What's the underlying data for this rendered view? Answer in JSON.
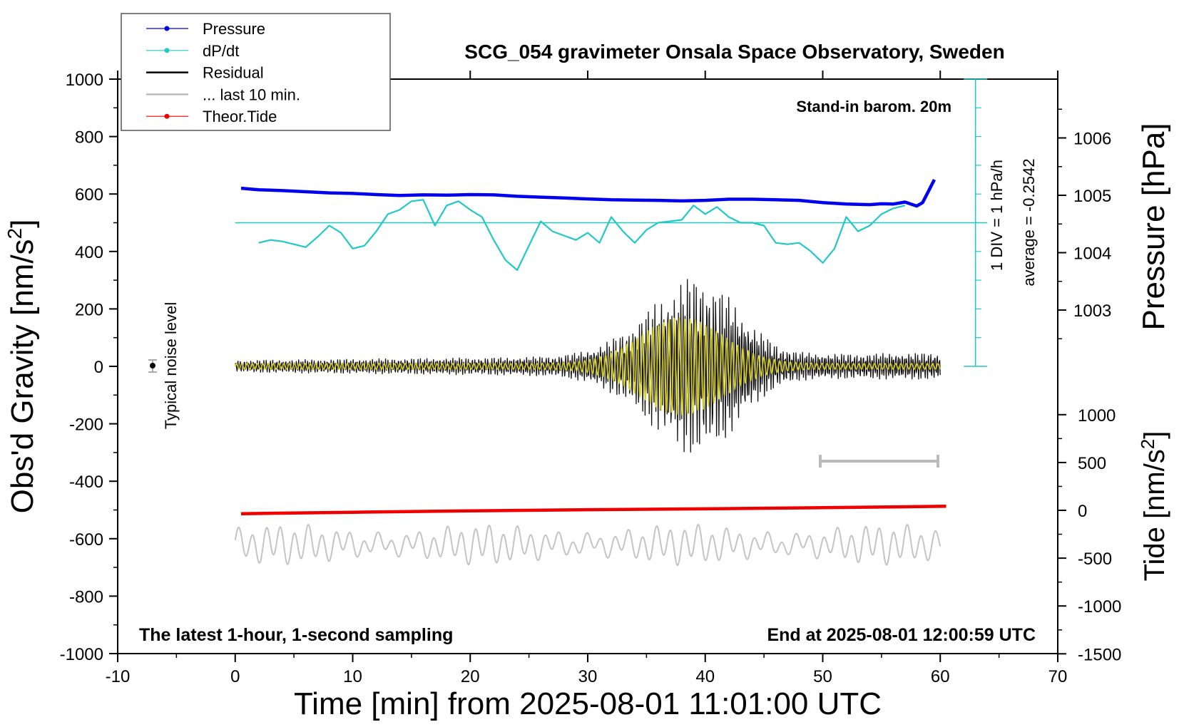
{
  "chart_data": {
    "type": "line",
    "title": "SCG_054 gravimeter Onsala Space Observatory, Sweden",
    "xlabel": "Time [min] from 2025-08-01 11:01:00 UTC",
    "ylabel_main": "Obs'd Gravity [nm/s",
    "ylabel_main_sup": "2",
    "ylabel_main_end": "]",
    "ylabel_pressure": "Pressure [hPa]",
    "ylabel_tide": "Tide [nm/s",
    "ylabel_tide_sup": "2",
    "ylabel_tide_end": "]",
    "xlim": [
      -10,
      70
    ],
    "ylim": [
      -1000,
      1000
    ],
    "x_ticks": [
      "-10",
      "0",
      "10",
      "20",
      "30",
      "40",
      "50",
      "60",
      "70"
    ],
    "y_ticks": [
      "1000",
      "800",
      "600",
      "400",
      "200",
      "0",
      "-200",
      "-400",
      "-600",
      "-800",
      "-1000"
    ],
    "pressure_ticks": [
      "1006",
      "1005",
      "1004",
      "1003"
    ],
    "tide_ticks": [
      "1000",
      "500",
      "0",
      "-500",
      "-1000",
      "-1500"
    ],
    "annotations": {
      "barometer": "Stand-in barom. 20m",
      "noise": "Typical noise level",
      "div": "1 DIV = 1 hPa/h",
      "average": "average = -0.2542",
      "bottom_left": "The latest 1-hour, 1-second sampling",
      "bottom_right": "End at 2025-08-01 12:00:59 UTC"
    },
    "legend": [
      {
        "name": "Pressure",
        "color": "#0000ee",
        "marker": true
      },
      {
        "name": "dP/dt",
        "color": "#20c8c8",
        "marker": true
      },
      {
        "name": "Residual",
        "color": "#000000",
        "marker": false
      },
      {
        "name": "... last 10 min.",
        "color": "#bbbbbb",
        "marker": false
      },
      {
        "name": "Theor.Tide",
        "color": "#ee0000",
        "marker": true
      }
    ],
    "series": [
      {
        "name": "Pressure",
        "color": "#0000ee",
        "x": [
          0.5,
          2,
          4,
          6,
          8,
          10,
          12,
          14,
          16,
          18,
          20,
          22,
          24,
          26,
          28,
          30,
          32,
          34,
          36,
          38,
          40,
          42,
          44,
          46,
          48,
          50,
          52,
          54,
          55,
          56,
          57,
          58,
          58.5,
          59,
          59.5
        ],
        "y": [
          620,
          615,
          612,
          608,
          604,
          602,
          598,
          595,
          597,
          596,
          598,
          597,
          592,
          589,
          586,
          583,
          580,
          579,
          578,
          576,
          578,
          582,
          582,
          580,
          578,
          570,
          565,
          563,
          566,
          565,
          572,
          558,
          570,
          610,
          650
        ]
      },
      {
        "name": "dP/dt",
        "color": "#20c8c8",
        "x": [
          2,
          3,
          4,
          5,
          6,
          7,
          8,
          9,
          10,
          11,
          12,
          13,
          14,
          15,
          16,
          17,
          18,
          19,
          20,
          21,
          22,
          23,
          24,
          25,
          26,
          27,
          28,
          29,
          30,
          31,
          32,
          33,
          34,
          35,
          36,
          37,
          38,
          39,
          40,
          41,
          42,
          43,
          44,
          45,
          46,
          47,
          48,
          49,
          50,
          51,
          52,
          53,
          54,
          55,
          56,
          57
        ],
        "y": [
          430,
          440,
          435,
          425,
          415,
          450,
          490,
          465,
          410,
          420,
          470,
          530,
          545,
          575,
          580,
          490,
          560,
          575,
          545,
          520,
          440,
          370,
          335,
          420,
          505,
          470,
          455,
          440,
          465,
          430,
          520,
          470,
          430,
          475,
          500,
          505,
          510,
          560,
          530,
          555,
          520,
          500,
          500,
          490,
          430,
          425,
          430,
          400,
          360,
          410,
          520,
          470,
          490,
          530,
          550,
          560
        ]
      },
      {
        "name": "Theor.Tide",
        "color": "#ee0000",
        "x": [
          0.5,
          10,
          20,
          30,
          40,
          50,
          60.5
        ],
        "y": [
          -513,
          -508,
          -503,
          -499,
          -496,
          -492,
          -487
        ]
      }
    ]
  }
}
